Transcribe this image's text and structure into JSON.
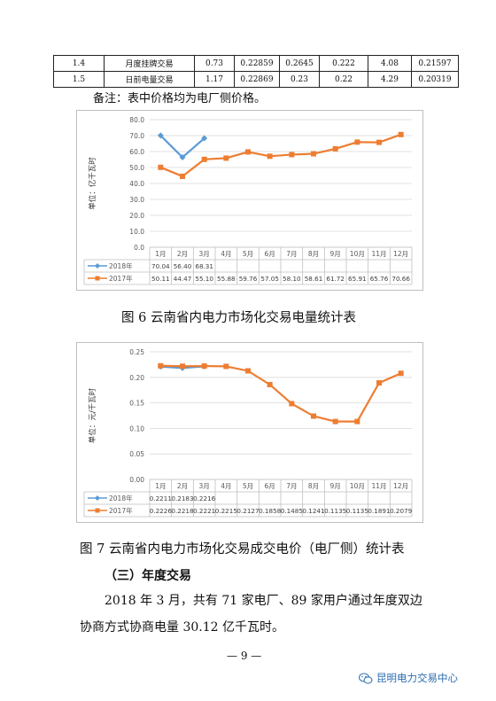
{
  "table": {
    "rows": [
      [
        "1.4",
        "月度挂牌交易",
        "0.73",
        "0.22859",
        "0.2645",
        "0.222",
        "4.08",
        "0.21597"
      ],
      [
        "1.5",
        "日前电量交易",
        "1.17",
        "0.22869",
        "0.23",
        "0.22",
        "4.29",
        "0.20319"
      ]
    ]
  },
  "note": "备注：表中价格均为电厂侧价格。",
  "charts": [
    {
      "caption": "图 6 云南省内电力市场化交易电量统计表",
      "chart_data": {
        "type": "line",
        "categories": [
          "1月",
          "2月",
          "3月",
          "4月",
          "5月",
          "6月",
          "7月",
          "8月",
          "9月",
          "10月",
          "11月",
          "12月"
        ],
        "ylabel": "单位：亿千瓦时",
        "ylim": [
          0,
          80
        ],
        "yticks": [
          "0.0",
          "10.0",
          "20.0",
          "30.0",
          "40.0",
          "50.0",
          "60.0",
          "70.0",
          "80.0"
        ],
        "yticks_values": [
          0,
          10,
          20,
          30,
          40,
          50,
          60,
          70,
          80
        ],
        "series": [
          {
            "name": "2018年",
            "color": "#5b9bd5",
            "marker": "diamond",
            "values": [
              70.04,
              56.4,
              68.31,
              null,
              null,
              null,
              null,
              null,
              null,
              null,
              null,
              null
            ],
            "labels": [
              "70.04",
              "56.40",
              "68.31",
              "",
              "",
              "",
              "",
              "",
              "",
              "",
              "",
              ""
            ]
          },
          {
            "name": "2017年",
            "color": "#ed7d31",
            "marker": "square",
            "values": [
              50.11,
              44.47,
              55.1,
              55.88,
              59.76,
              57.05,
              58.1,
              58.61,
              61.72,
              65.91,
              65.76,
              70.66
            ],
            "labels": [
              "50.11",
              "44.47",
              "55.10",
              "55.88",
              "59.76",
              "57.05",
              "58.10",
              "58.61",
              "61.72",
              "65.91",
              "65.76",
              "70.66"
            ]
          }
        ],
        "grid": true,
        "legend": "data-table-bottom"
      }
    },
    {
      "caption": "图 7 云南省内电力市场化交易成交电价（电厂侧）统计表",
      "chart_data": {
        "type": "line",
        "categories": [
          "1月",
          "2月",
          "3月",
          "4月",
          "5月",
          "6月",
          "7月",
          "8月",
          "9月",
          "10月",
          "11月",
          "12月"
        ],
        "ylabel": "单位：元/千瓦时",
        "ylim": [
          0,
          0.25
        ],
        "yticks": [
          "0.00",
          "0.05",
          "0.10",
          "0.15",
          "0.20",
          "0.25"
        ],
        "yticks_values": [
          0,
          0.05,
          0.1,
          0.15,
          0.2,
          0.25
        ],
        "series": [
          {
            "name": "2018年",
            "color": "#5b9bd5",
            "marker": "diamond",
            "values": [
              0.2211,
              0.2183,
              0.2216,
              null,
              null,
              null,
              null,
              null,
              null,
              null,
              null,
              null
            ],
            "labels": [
              "0.2211",
              "0.2183",
              "0.2216",
              "",
              "",
              "",
              "",
              "",
              "",
              "",
              "",
              ""
            ]
          },
          {
            "name": "2017年",
            "color": "#ed7d31",
            "marker": "square",
            "values": [
              0.2226,
              0.2218,
              0.2221,
              0.2215,
              0.2127,
              0.1858,
              0.1485,
              0.1241,
              0.1135,
              0.1135,
              0.1891,
              0.2079
            ],
            "labels": [
              "0.2226",
              "0.2218",
              "0.2221",
              "0.2215",
              "0.2127",
              "0.1858",
              "0.1485",
              "0.1241",
              "0.1135",
              "0.1135",
              "0.1891",
              "0.2079"
            ]
          }
        ],
        "grid": true,
        "legend": "data-table-bottom"
      }
    }
  ],
  "section_heading": "（三）年度交易",
  "paragraph_line1": "2018 年 3 月，共有 71 家电厂、89 家用户通过年度双边",
  "paragraph_line2": "协商方式协商电量 30.12 亿千瓦时。",
  "page_number": "— 9 —",
  "watermark": "昆明电力交易中心"
}
